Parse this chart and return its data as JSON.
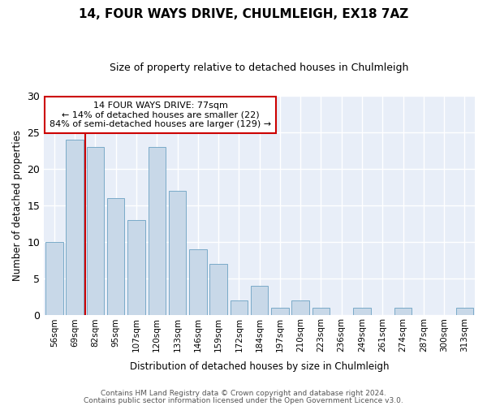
{
  "title1": "14, FOUR WAYS DRIVE, CHULMLEIGH, EX18 7AZ",
  "title2": "Size of property relative to detached houses in Chulmleigh",
  "xlabel": "Distribution of detached houses by size in Chulmleigh",
  "ylabel": "Number of detached properties",
  "categories": [
    "56sqm",
    "69sqm",
    "82sqm",
    "95sqm",
    "107sqm",
    "120sqm",
    "133sqm",
    "146sqm",
    "159sqm",
    "172sqm",
    "184sqm",
    "197sqm",
    "210sqm",
    "223sqm",
    "236sqm",
    "249sqm",
    "261sqm",
    "274sqm",
    "287sqm",
    "300sqm",
    "313sqm"
  ],
  "values": [
    10,
    24,
    23,
    16,
    13,
    23,
    17,
    9,
    7,
    2,
    4,
    1,
    2,
    1,
    0,
    1,
    0,
    1,
    0,
    0,
    1
  ],
  "bar_color": "#c8d8e8",
  "bar_edgecolor": "#7aaac8",
  "background_color": "#e8eef8",
  "grid_color": "#ffffff",
  "vline_x": 1.5,
  "vline_color": "#cc0000",
  "annotation_line1": "14 FOUR WAYS DRIVE: 77sqm",
  "annotation_line2": "← 14% of detached houses are smaller (22)",
  "annotation_line3": "84% of semi-detached houses are larger (129) →",
  "annotation_box_color": "white",
  "annotation_box_edgecolor": "#cc0000",
  "ylim": [
    0,
    30
  ],
  "yticks": [
    0,
    5,
    10,
    15,
    20,
    25,
    30
  ],
  "footer1": "Contains HM Land Registry data © Crown copyright and database right 2024.",
  "footer2": "Contains public sector information licensed under the Open Government Licence v3.0."
}
